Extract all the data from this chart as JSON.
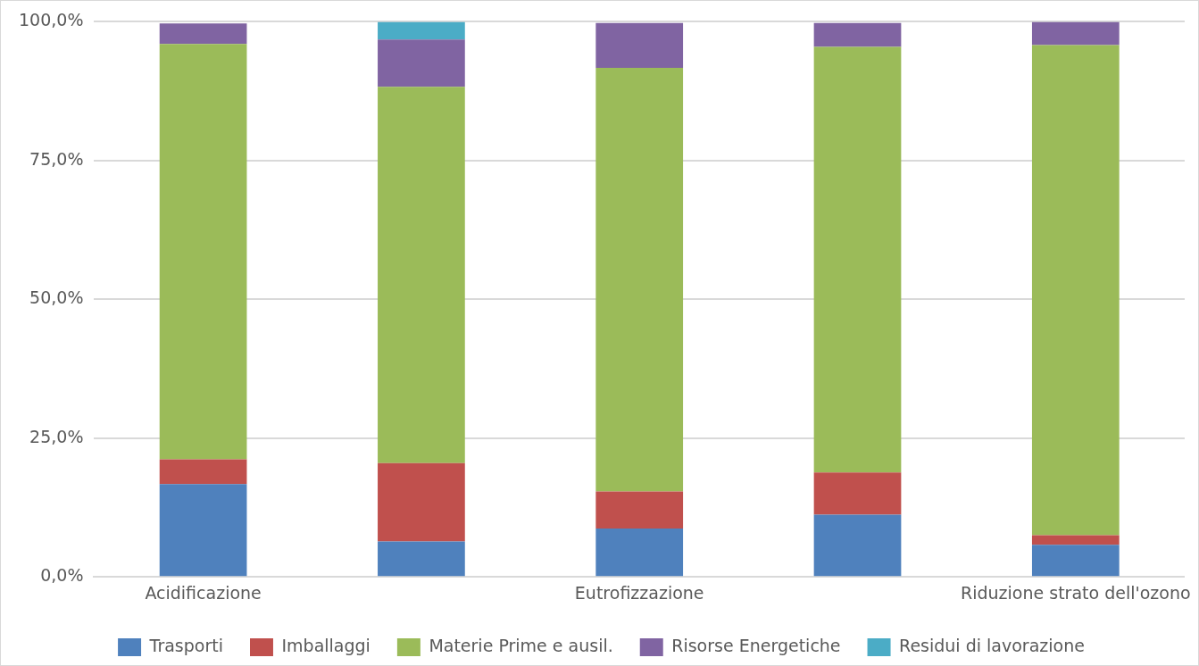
{
  "chart_data": {
    "type": "bar",
    "stacked": true,
    "categories": [
      "Acidificazione",
      null,
      "Eutrofizzazione",
      null,
      "Riduzione strato dell'ozono"
    ],
    "series": [
      {
        "name": "Trasporti",
        "color": "#4f81bd",
        "values": [
          16.7,
          6.4,
          8.7,
          11.2,
          5.8
        ]
      },
      {
        "name": "Imballaggi",
        "color": "#c0504d",
        "values": [
          4.5,
          14.1,
          6.7,
          7.6,
          1.7
        ]
      },
      {
        "name": "Materie Prime e ausil.",
        "color": "#9bbb59",
        "values": [
          74.8,
          67.8,
          76.3,
          76.7,
          88.3
        ]
      },
      {
        "name": "Risorse Energetiche",
        "color": "#8064a2",
        "values": [
          3.7,
          8.5,
          8.1,
          4.3,
          4.2
        ]
      },
      {
        "name": "Residui di lavorazione",
        "color": "#4bacc6",
        "values": [
          0,
          3.2,
          0,
          0,
          0
        ]
      }
    ],
    "ylim": [
      0,
      100
    ],
    "yticks": [
      {
        "value": 0,
        "label": "0,0%"
      },
      {
        "value": 25,
        "label": "25,0%"
      },
      {
        "value": 50,
        "label": "50,0%"
      },
      {
        "value": 75,
        "label": "75,0%"
      },
      {
        "value": 100,
        "label": "100,0%"
      }
    ],
    "grid": "y",
    "legend": "bottom"
  }
}
